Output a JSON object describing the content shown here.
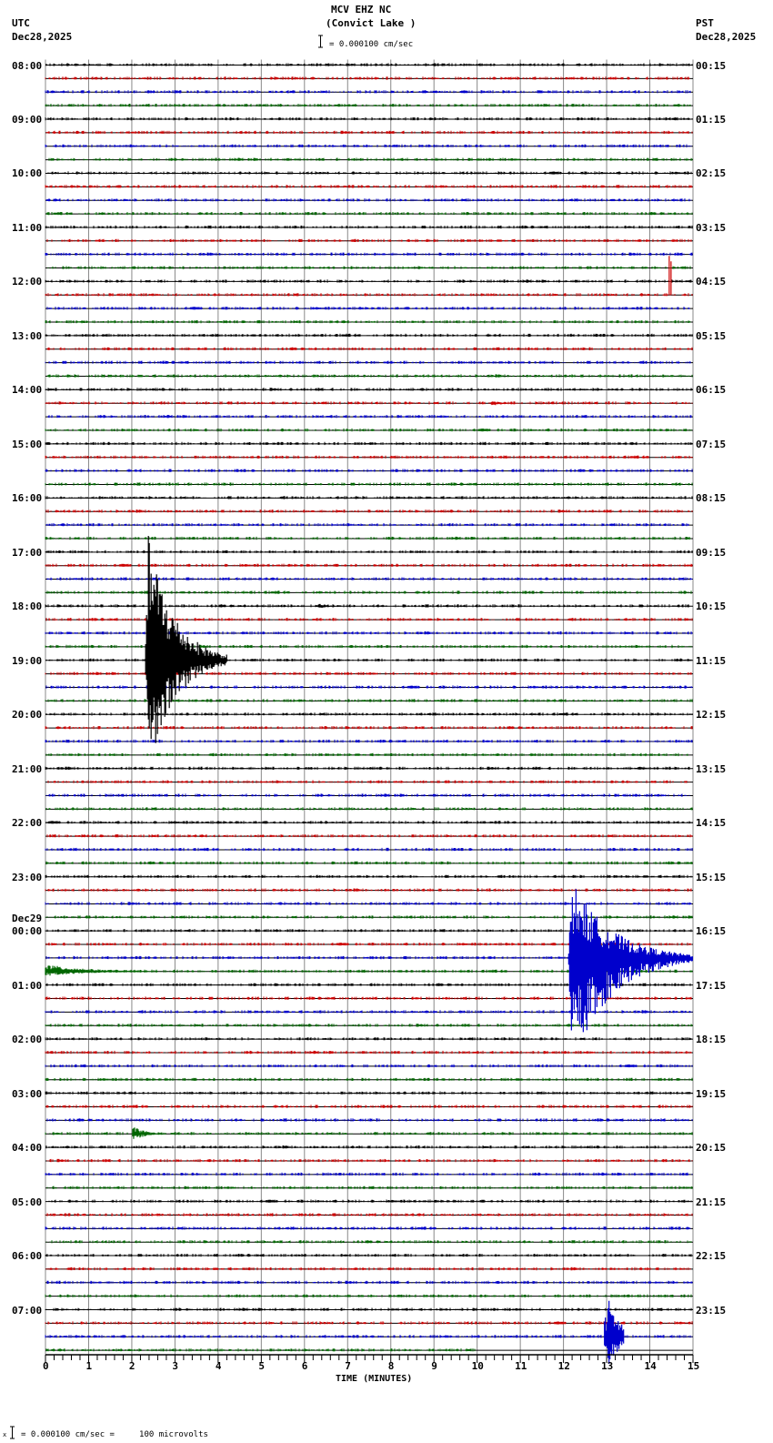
{
  "header": {
    "station": "MCV EHZ NC",
    "location": "(Convict Lake )",
    "scale_text": "= 0.000100 cm/sec",
    "left_tz": "UTC",
    "left_date": "Dec28,2025",
    "right_tz": "PST",
    "right_date": "Dec28,2025"
  },
  "footer": {
    "legend_mark": "x",
    "legend_text": "= 0.000100 cm/sec =     100 microvolts",
    "xlabel": "TIME (MINUTES)"
  },
  "colors": {
    "trace_cycle": [
      "#000000",
      "#cc0000",
      "#0000cc",
      "#006600"
    ],
    "baseline": "#000000",
    "grid": "#888888"
  },
  "chart_data": {
    "type": "line",
    "title": "MCV EHZ NC (Convict Lake )",
    "subtitle": "= 0.000100 cm/sec",
    "xlabel": "TIME (MINUTES)",
    "ylabel": "",
    "xlim": [
      0,
      15
    ],
    "x_ticks": [
      0,
      1,
      2,
      3,
      4,
      5,
      6,
      7,
      8,
      9,
      10,
      11,
      12,
      13,
      14,
      15
    ],
    "minor_tick_step": 0.2,
    "grid": true,
    "rows_per_hour": 4,
    "total_rows": 96,
    "left_hour_labels": [
      "08:00",
      "09:00",
      "10:00",
      "11:00",
      "12:00",
      "13:00",
      "14:00",
      "15:00",
      "16:00",
      "17:00",
      "18:00",
      "19:00",
      "20:00",
      "21:00",
      "22:00",
      "23:00",
      "00:00",
      "01:00",
      "02:00",
      "03:00",
      "04:00",
      "05:00",
      "06:00",
      "07:00"
    ],
    "left_date_change": {
      "label": "Dec29",
      "hour_index": 16
    },
    "right_hour_labels": [
      "00:15",
      "01:15",
      "02:15",
      "03:15",
      "04:15",
      "05:15",
      "06:15",
      "07:15",
      "08:15",
      "09:15",
      "10:15",
      "11:15",
      "12:15",
      "13:15",
      "14:15",
      "15:15",
      "16:15",
      "17:15",
      "18:15",
      "19:15",
      "20:15",
      "21:15",
      "22:15",
      "23:15"
    ],
    "data_end": {
      "row": 95,
      "minute": 10
    },
    "events": [
      {
        "name": "spike-1200",
        "row": 17,
        "minute": 14.45,
        "color_row": 16,
        "amp_up": 43,
        "amp_down": 2,
        "duration": 0.1,
        "kind": "spike"
      },
      {
        "name": "local-quake-1830",
        "row": 44,
        "minute": 2.3,
        "amp_up": 140,
        "amp_down": 125,
        "duration": 1.9,
        "kind": "quake"
      },
      {
        "name": "minor-1800",
        "row": 40,
        "minute": 6.3,
        "amp_up": 3,
        "amp_down": 3,
        "duration": 0.6,
        "kind": "quake"
      },
      {
        "name": "minor-1345",
        "row": 25,
        "minute": 10.3,
        "amp_up": 3,
        "amp_down": 3,
        "duration": 0.8,
        "kind": "quake"
      },
      {
        "name": "minor-2100",
        "row": 52,
        "minute": 13.8,
        "amp_up": 4,
        "amp_down": 2,
        "duration": 0.2,
        "kind": "quake"
      },
      {
        "name": "regional-quake-0030",
        "row": 66,
        "minute": 12.1,
        "amp_up": 85,
        "amp_down": 115,
        "duration": 2.9,
        "kind": "quake"
      },
      {
        "name": "coda-0045",
        "row": 67,
        "minute": 0,
        "amp_up": 8,
        "amp_down": 5,
        "duration": 2.5,
        "kind": "coda"
      },
      {
        "name": "minor-0345",
        "row": 79,
        "minute": 2.0,
        "amp_up": 10,
        "amp_down": 8,
        "duration": 0.8,
        "kind": "quake"
      },
      {
        "name": "blue-bursts-0730",
        "row": 94,
        "minute": 12.95,
        "amp_up": 58,
        "amp_down": 45,
        "duration": 0.45,
        "kind": "burst"
      }
    ]
  }
}
